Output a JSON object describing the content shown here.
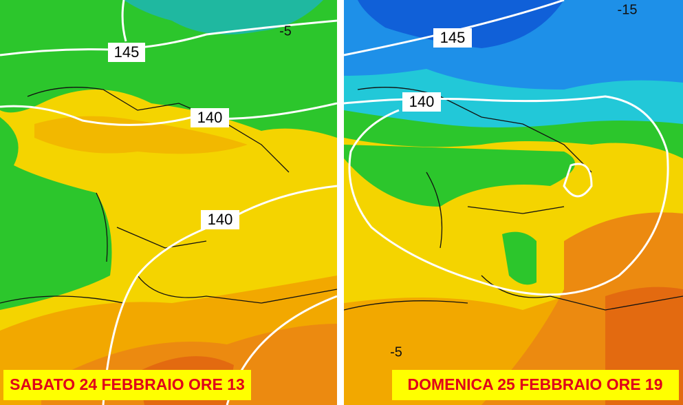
{
  "panels": [
    {
      "caption": "SABATO 24 FEBBRAIO ORE 13",
      "contour_labels": [
        "145",
        "140",
        "140",
        "-5"
      ]
    },
    {
      "caption": "DOMENICA 25 FEBBRAIO ORE 19",
      "contour_labels": [
        "145",
        "140",
        "-15",
        "-5"
      ]
    }
  ]
}
